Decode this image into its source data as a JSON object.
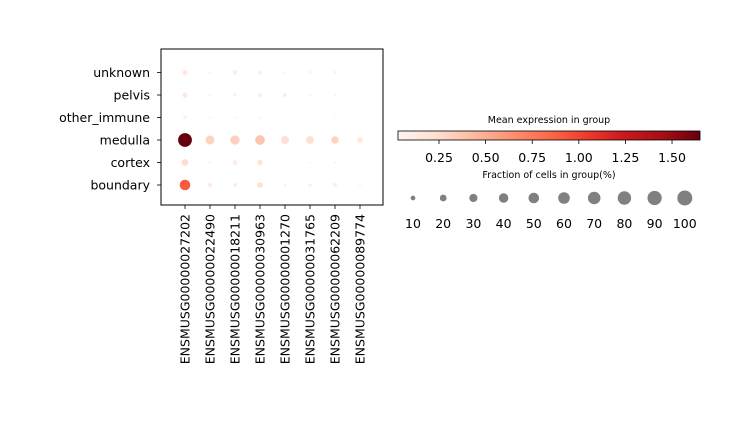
{
  "chart_data": {
    "type": "dotplot",
    "genes": [
      "ENSMUSG00000027202",
      "ENSMUSG00000022490",
      "ENSMUSG00000018211",
      "ENSMUSG00000030963",
      "ENSMUSG00000001270",
      "ENSMUSG00000031765",
      "ENSMUSG00000062209",
      "ENSMUSG00000089774"
    ],
    "groups": [
      "unknown",
      "pelvis",
      "other_immune",
      "medulla",
      "cortex",
      "boundary"
    ],
    "cells": [
      {
        "group": "unknown",
        "gene_index": 0,
        "fraction_pct": 12,
        "mean_expression": 0.15
      },
      {
        "group": "unknown",
        "gene_index": 1,
        "fraction_pct": 4,
        "mean_expression": 0.05
      },
      {
        "group": "unknown",
        "gene_index": 2,
        "fraction_pct": 10,
        "mean_expression": 0.12
      },
      {
        "group": "unknown",
        "gene_index": 3,
        "fraction_pct": 8,
        "mean_expression": 0.1
      },
      {
        "group": "unknown",
        "gene_index": 4,
        "fraction_pct": 4,
        "mean_expression": 0.05
      },
      {
        "group": "unknown",
        "gene_index": 5,
        "fraction_pct": 5,
        "mean_expression": 0.06
      },
      {
        "group": "unknown",
        "gene_index": 6,
        "fraction_pct": 5,
        "mean_expression": 0.06
      },
      {
        "group": "unknown",
        "gene_index": 7,
        "fraction_pct": 3,
        "mean_expression": 0.04
      },
      {
        "group": "pelvis",
        "gene_index": 0,
        "fraction_pct": 12,
        "mean_expression": 0.15
      },
      {
        "group": "pelvis",
        "gene_index": 1,
        "fraction_pct": 4,
        "mean_expression": 0.05
      },
      {
        "group": "pelvis",
        "gene_index": 2,
        "fraction_pct": 6,
        "mean_expression": 0.07
      },
      {
        "group": "pelvis",
        "gene_index": 3,
        "fraction_pct": 8,
        "mean_expression": 0.1
      },
      {
        "group": "pelvis",
        "gene_index": 4,
        "fraction_pct": 8,
        "mean_expression": 0.1
      },
      {
        "group": "pelvis",
        "gene_index": 5,
        "fraction_pct": 4,
        "mean_expression": 0.05
      },
      {
        "group": "pelvis",
        "gene_index": 6,
        "fraction_pct": 3,
        "mean_expression": 0.04
      },
      {
        "group": "pelvis",
        "gene_index": 7,
        "fraction_pct": 2,
        "mean_expression": 0.03
      },
      {
        "group": "other_immune",
        "gene_index": 0,
        "fraction_pct": 6,
        "mean_expression": 0.08
      },
      {
        "group": "other_immune",
        "gene_index": 1,
        "fraction_pct": 3,
        "mean_expression": 0.03
      },
      {
        "group": "other_immune",
        "gene_index": 2,
        "fraction_pct": 3,
        "mean_expression": 0.03
      },
      {
        "group": "other_immune",
        "gene_index": 3,
        "fraction_pct": 3,
        "mean_expression": 0.03
      },
      {
        "group": "other_immune",
        "gene_index": 4,
        "fraction_pct": 2,
        "mean_expression": 0.03
      },
      {
        "group": "other_immune",
        "gene_index": 5,
        "fraction_pct": 2,
        "mean_expression": 0.03
      },
      {
        "group": "other_immune",
        "gene_index": 6,
        "fraction_pct": 2,
        "mean_expression": 0.03
      },
      {
        "group": "other_immune",
        "gene_index": 7,
        "fraction_pct": 2,
        "mean_expression": 0.03
      },
      {
        "group": "medulla",
        "gene_index": 0,
        "fraction_pct": 85,
        "mean_expression": 1.65
      },
      {
        "group": "medulla",
        "gene_index": 1,
        "fraction_pct": 35,
        "mean_expression": 0.3
      },
      {
        "group": "medulla",
        "gene_index": 2,
        "fraction_pct": 38,
        "mean_expression": 0.32
      },
      {
        "group": "medulla",
        "gene_index": 3,
        "fraction_pct": 42,
        "mean_expression": 0.38
      },
      {
        "group": "medulla",
        "gene_index": 4,
        "fraction_pct": 28,
        "mean_expression": 0.22
      },
      {
        "group": "medulla",
        "gene_index": 5,
        "fraction_pct": 28,
        "mean_expression": 0.24
      },
      {
        "group": "medulla",
        "gene_index": 6,
        "fraction_pct": 25,
        "mean_expression": 0.3
      },
      {
        "group": "medulla",
        "gene_index": 7,
        "fraction_pct": 15,
        "mean_expression": 0.15
      },
      {
        "group": "cortex",
        "gene_index": 0,
        "fraction_pct": 20,
        "mean_expression": 0.25
      },
      {
        "group": "cortex",
        "gene_index": 1,
        "fraction_pct": 4,
        "mean_expression": 0.05
      },
      {
        "group": "cortex",
        "gene_index": 2,
        "fraction_pct": 10,
        "mean_expression": 0.12
      },
      {
        "group": "cortex",
        "gene_index": 3,
        "fraction_pct": 14,
        "mean_expression": 0.18
      },
      {
        "group": "cortex",
        "gene_index": 4,
        "fraction_pct": 2,
        "mean_expression": 0.03
      },
      {
        "group": "cortex",
        "gene_index": 5,
        "fraction_pct": 3,
        "mean_expression": 0.04
      },
      {
        "group": "cortex",
        "gene_index": 6,
        "fraction_pct": 3,
        "mean_expression": 0.03
      },
      {
        "group": "cortex",
        "gene_index": 7,
        "fraction_pct": 2,
        "mean_expression": 0.03
      },
      {
        "group": "boundary",
        "gene_index": 0,
        "fraction_pct": 50,
        "mean_expression": 0.9
      },
      {
        "group": "boundary",
        "gene_index": 1,
        "fraction_pct": 10,
        "mean_expression": 0.12
      },
      {
        "group": "boundary",
        "gene_index": 2,
        "fraction_pct": 8,
        "mean_expression": 0.1
      },
      {
        "group": "boundary",
        "gene_index": 3,
        "fraction_pct": 15,
        "mean_expression": 0.22
      },
      {
        "group": "boundary",
        "gene_index": 4,
        "fraction_pct": 4,
        "mean_expression": 0.05
      },
      {
        "group": "boundary",
        "gene_index": 5,
        "fraction_pct": 6,
        "mean_expression": 0.08
      },
      {
        "group": "boundary",
        "gene_index": 6,
        "fraction_pct": 8,
        "mean_expression": 0.1
      },
      {
        "group": "boundary",
        "gene_index": 7,
        "fraction_pct": 3,
        "mean_expression": 0.04
      }
    ],
    "color_scale": {
      "title": "Mean expression in group",
      "colormap": "Reds",
      "vmin": 0.03,
      "vmax": 1.65,
      "ticks": [
        0.25,
        0.5,
        0.75,
        1.0,
        1.25,
        1.5
      ],
      "tick_labels": [
        "0.25",
        "0.50",
        "0.75",
        "1.00",
        "1.25",
        "1.50"
      ]
    },
    "size_legend": {
      "title": "Fraction of cells in group(%)",
      "values": [
        10,
        20,
        30,
        40,
        50,
        60,
        70,
        80,
        90,
        100
      ],
      "labels": [
        "10",
        "20",
        "30",
        "40",
        "50",
        "60",
        "70",
        "80",
        "90",
        "100"
      ],
      "color": "#808080"
    },
    "grid": false
  }
}
